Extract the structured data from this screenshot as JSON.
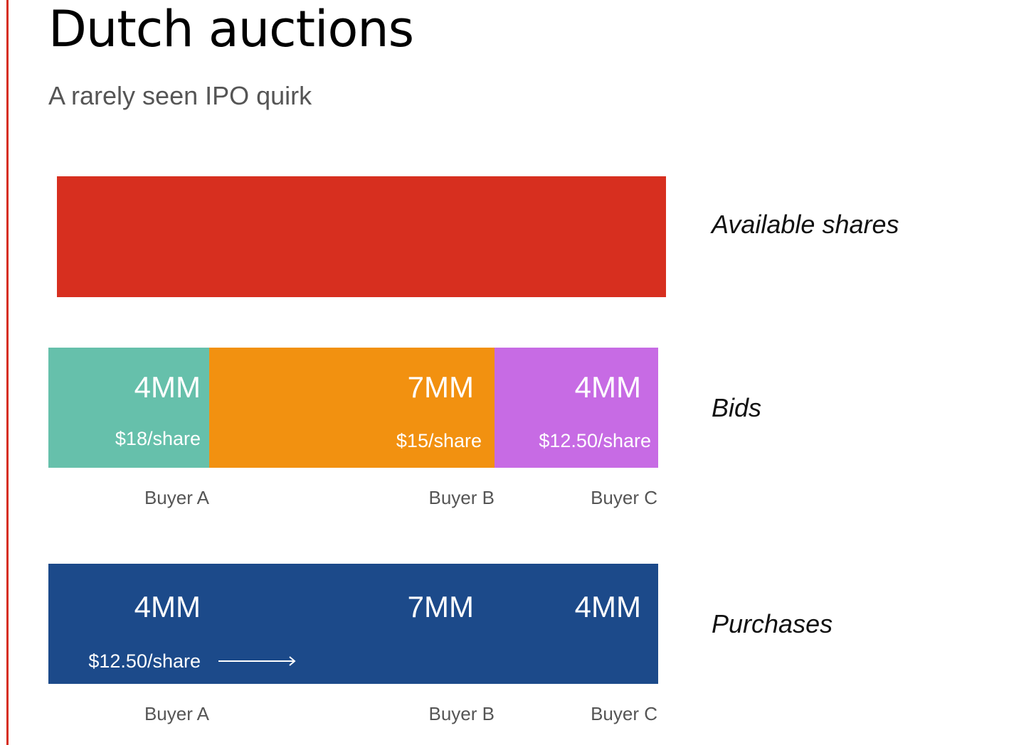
{
  "title": "Dutch auctions",
  "subtitle": "A rarely seen IPO quirk",
  "colors": {
    "accent_rule": "#d62e1f",
    "available": "#d72f1f",
    "buyer_a": "#66c0ab",
    "buyer_b": "#f29110",
    "buyer_c": "#c76be4",
    "purchases": "#1c4a8a"
  },
  "rows": {
    "available": {
      "label": "Available shares"
    },
    "bids": {
      "label": "Bids",
      "segments": [
        {
          "amount": "4MM",
          "price": "$18/share",
          "buyer": "Buyer A"
        },
        {
          "amount": "7MM",
          "price": "$15/share",
          "buyer": "Buyer B"
        },
        {
          "amount": "4MM",
          "price": "$12.50/share",
          "buyer": "Buyer C"
        }
      ]
    },
    "purchases": {
      "label": "Purchases",
      "clearing_price": "$12.50/share",
      "segments": [
        {
          "amount": "4MM",
          "buyer": "Buyer A"
        },
        {
          "amount": "7MM",
          "buyer": "Buyer B"
        },
        {
          "amount": "4MM",
          "buyer": "Buyer C"
        }
      ]
    }
  }
}
